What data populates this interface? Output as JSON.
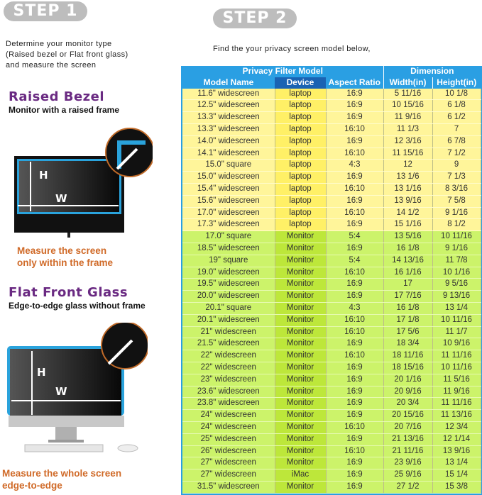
{
  "step1": {
    "badge": "STEP 1",
    "intro": [
      "Determine your monitor type",
      "(Raised bezel or Flat front glass)",
      "and measure the screen"
    ],
    "raised": {
      "title": "Raised Bezel",
      "subtitle": "Monitor with a raised frame",
      "note": [
        "Measure the screen",
        "only within the frame"
      ]
    },
    "flat": {
      "title": "Flat Front Glass",
      "subtitle": "Edge-to-edge glass without frame",
      "note": [
        "Measure the whole screen",
        "edge-to-edge"
      ]
    },
    "labels": {
      "h": "H",
      "w": "W"
    }
  },
  "step2": {
    "badge": "STEP 2",
    "instruction": "Find the your privacy screen model below,"
  },
  "colors": {
    "header_blue": "#2a9fe3",
    "device_header": "#1a63b3",
    "laptop_row": "#fff59a",
    "monitor_row": "#ccf36a",
    "title_purple": "#6a2a82",
    "note_orange": "#d06a28"
  },
  "table": {
    "group_headers": [
      "Privacy Filter Model",
      "Dimension"
    ],
    "columns": [
      "Model Name",
      "Device",
      "Aspect Ratio",
      "Width(in)",
      "Height(in)"
    ],
    "rows": [
      [
        "11.6\" widescreen",
        "laptop",
        "16:9",
        "5 11/16",
        "10 1/8"
      ],
      [
        "12.5\" widescreen",
        "laptop",
        "16:9",
        "10 15/16",
        "6 1/8"
      ],
      [
        "13.3\" widescreen",
        "laptop",
        "16:9",
        "11 9/16",
        "6 1/2"
      ],
      [
        "13.3\" widescreen",
        "laptop",
        "16:10",
        "11 1/3",
        "7"
      ],
      [
        "14.0\" widescreen",
        "laptop",
        "16:9",
        "12 3/16",
        "6 7/8"
      ],
      [
        "14.1\" widescreen",
        "laptop",
        "16:10",
        "11 15/16",
        "7 1/2"
      ],
      [
        "15.0\" square",
        "laptop",
        "4:3",
        "12",
        "9"
      ],
      [
        "15.0\" widescreen",
        "laptop",
        "16:9",
        "13 1/6",
        "7 1/3"
      ],
      [
        "15.4\" widescreen",
        "laptop",
        "16:10",
        "13 1/16",
        "8 3/16"
      ],
      [
        "15.6\" widescreen",
        "laptop",
        "16:9",
        "13 9/16",
        "7 5/8"
      ],
      [
        "17.0\" widescreen",
        "laptop",
        "16:10",
        "14 1/2",
        "9 1/16"
      ],
      [
        "17.3\" widescreen",
        "laptop",
        "16:9",
        "15 1/16",
        "8 1/2"
      ],
      [
        "17.0\" square",
        "Monitor",
        "5:4",
        "13 5/16",
        "10 11/16"
      ],
      [
        "18.5\" widescreen",
        "Monitor",
        "16:9",
        "16 1/8",
        "9 1/16"
      ],
      [
        "19\" square",
        "Monitor",
        "5:4",
        "14 13/16",
        "11 7/8"
      ],
      [
        "19.0\" widescreen",
        "Monitor",
        "16:10",
        "16 1/16",
        "10 1/16"
      ],
      [
        "19.5\" widescreen",
        "Monitor",
        "16:9",
        "17",
        "9 5/16"
      ],
      [
        "20.0\" widescreen",
        "Monitor",
        "16:9",
        "17 7/16",
        "9 13/16"
      ],
      [
        "20.1\" square",
        "Monitor",
        "4:3",
        "16 1/8",
        "13 1/4"
      ],
      [
        "20.1\" widescreen",
        "Monitor",
        "16:10",
        "17 1/8",
        "10 11/16"
      ],
      [
        "21\" widescreen",
        "Monitor",
        "16:10",
        "17 5/6",
        "11 1/7"
      ],
      [
        "21.5\" widescreen",
        "Monitor",
        "16:9",
        "18 3/4",
        "10 9/16"
      ],
      [
        "22\" widescreen",
        "Monitor",
        "16:10",
        "18 11/16",
        "11 11/16"
      ],
      [
        "22\" widescreen",
        "Monitor",
        "16:9",
        "18 15/16",
        "10 11/16"
      ],
      [
        "23\" widescreen",
        "Monitor",
        "16:9",
        "20 1/16",
        "11 5/16"
      ],
      [
        "23.6\" widescreen",
        "Monitor",
        "16:9",
        "20 9/16",
        "11 9/16"
      ],
      [
        "23.8\" widescreen",
        "Monitor",
        "16:9",
        "20 3/4",
        "11 11/16"
      ],
      [
        "24\" widescreen",
        "Monitor",
        "16:9",
        "20 15/16",
        "11 13/16"
      ],
      [
        "24\" widescreen",
        "Monitor",
        "16:10",
        "20 7/16",
        "12 3/4"
      ],
      [
        "25\" widescreen",
        "Monitor",
        "16:9",
        "21 13/16",
        "12 1/14"
      ],
      [
        "26\" widescreen",
        "Monitor",
        "16:10",
        "21 11/16",
        "13 9/16"
      ],
      [
        "27\" widescreen",
        "Monitor",
        "16:9",
        "23 9/16",
        "13 1/4"
      ],
      [
        "27\" widescreen",
        "iMac",
        "16:9",
        "25 9/16",
        "15 1/4"
      ],
      [
        "31.5\" widescreen",
        "Monitor",
        "16:9",
        "27 1/2",
        "15 3/8"
      ]
    ]
  }
}
